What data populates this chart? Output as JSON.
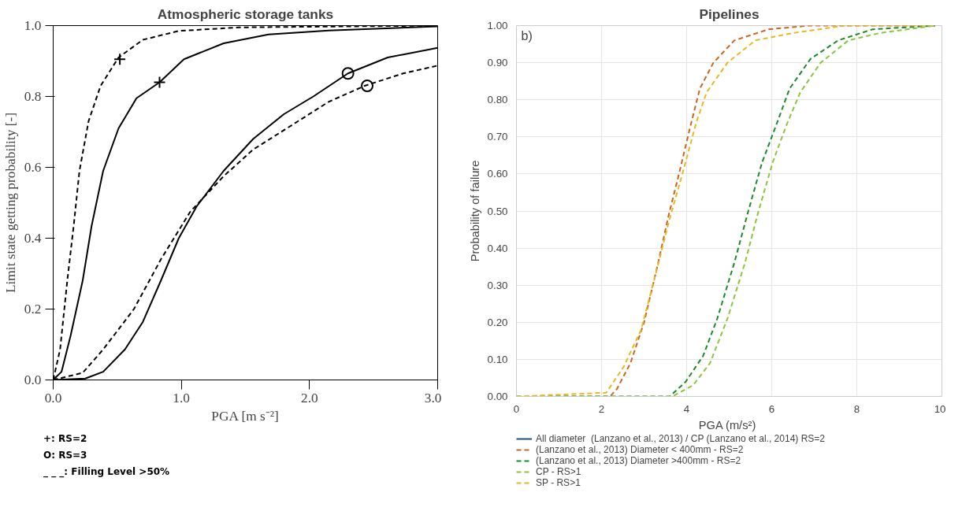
{
  "chart_data": [
    {
      "type": "line",
      "title": "Atmospheric storage tanks",
      "xlabel": "PGA [m s⁻²]",
      "ylabel": "Limit state getting probability [-]",
      "xlim": [
        0,
        3.0
      ],
      "ylim": [
        0,
        1.0
      ],
      "xticks": [
        {
          "value": 0,
          "label": "0.0"
        },
        {
          "value": 1,
          "label": "1.0"
        },
        {
          "value": 2,
          "label": "2.0"
        },
        {
          "value": 3,
          "label": "3.0"
        }
      ],
      "yticks": [
        {
          "value": 0,
          "label": "0.0"
        },
        0.2,
        0.4,
        0.6,
        0.8,
        {
          "value": 1,
          "label": "1.0"
        }
      ],
      "grid": false,
      "legend": false,
      "annotations": [
        "+:  RS=2",
        "O: RS=3",
        "_ _ _: Filling Level >50%"
      ],
      "series": [
        {
          "color": "#000000",
          "line_style": "dashed",
          "x": [
            0,
            0.054,
            0.11,
            0.16,
            0.205,
            0.276,
            0.37,
            0.51,
            0.7,
            0.98,
            1.45,
            3.0
          ],
          "values": [
            0,
            0.086,
            0.28,
            0.435,
            0.59,
            0.73,
            0.83,
            0.91,
            0.96,
            0.985,
            0.995,
            1.0
          ]
        },
        {
          "color": "#000000",
          "line_style": "solid",
          "x": [
            0,
            0.065,
            0.136,
            0.23,
            0.3,
            0.39,
            0.51,
            0.65,
            0.83,
            1.02,
            1.33,
            1.68,
            2.15,
            3.0
          ],
          "values": [
            0,
            0.023,
            0.125,
            0.28,
            0.435,
            0.59,
            0.71,
            0.795,
            0.84,
            0.905,
            0.95,
            0.975,
            0.986,
            0.998
          ]
        },
        {
          "color": "#000000",
          "line_style": "solid",
          "x": [
            0,
            0.25,
            0.39,
            0.56,
            0.7,
            0.84,
            0.98,
            1.12,
            1.33,
            1.56,
            1.8,
            2.03,
            2.3,
            2.61,
            3.0
          ],
          "values": [
            0,
            0.004,
            0.023,
            0.086,
            0.164,
            0.28,
            0.4,
            0.49,
            0.59,
            0.68,
            0.75,
            0.8,
            0.865,
            0.91,
            0.937
          ]
        },
        {
          "color": "#000000",
          "line_style": "dashed",
          "x": [
            0,
            0.23,
            0.39,
            0.63,
            0.84,
            1.07,
            1.33,
            1.56,
            1.91,
            2.15,
            2.43,
            2.73,
            3.0
          ],
          "values": [
            0,
            0.02,
            0.086,
            0.2,
            0.34,
            0.475,
            0.575,
            0.65,
            0.73,
            0.785,
            0.83,
            0.865,
            0.887
          ]
        },
        {
          "type": "scatter",
          "marker": "cross",
          "color": "#000000",
          "x": [
            0.52,
            0.83
          ],
          "values": [
            0.905,
            0.84
          ]
        },
        {
          "type": "scatter",
          "marker": "circle",
          "color": "#000000",
          "x": [
            2.3,
            2.45
          ],
          "values": [
            0.865,
            0.83
          ]
        }
      ]
    },
    {
      "type": "line",
      "title": "Pipelines",
      "xlabel": "PGA  (m/s²)",
      "ylabel": "Probability of failure",
      "xlim": [
        0,
        10
      ],
      "ylim": [
        0,
        1.0
      ],
      "xticks": [
        0,
        2,
        4,
        6,
        8,
        10
      ],
      "yticks": [
        {
          "value": 0,
          "label": "0.00"
        },
        {
          "value": 0.1,
          "label": "0.10"
        },
        {
          "value": 0.2,
          "label": "0.20"
        },
        {
          "value": 0.3,
          "label": "0.30"
        },
        {
          "value": 0.4,
          "label": "0.40"
        },
        {
          "value": 0.5,
          "label": "0.50"
        },
        {
          "value": 0.6,
          "label": "0.60"
        },
        {
          "value": 0.7,
          "label": "0.70"
        },
        {
          "value": 0.8,
          "label": "0.80"
        },
        {
          "value": 0.9,
          "label": "0.90"
        },
        {
          "value": 1.0,
          "label": "1.00"
        }
      ],
      "grid": true,
      "legend": "bottom",
      "annotations": [
        "b)"
      ],
      "series": [
        {
          "name": "All diameter  (Lanzano et al., 2013) / CP (Lanzano et al., 2014) RS=2",
          "color": "#1f4e79",
          "line_style": "solid"
        },
        {
          "name": "(Lanzano et al., 2013) Diameter < 400mm - RS=2",
          "color": "#c8651e",
          "line_style": "dashed",
          "x": [
            0,
            2.2,
            2.36,
            2.68,
            3.0,
            3.33,
            3.58,
            3.82,
            4.07,
            4.31,
            4.63,
            5.12,
            5.93,
            6.9,
            9.84
          ],
          "values": [
            0,
            0,
            0.02,
            0.09,
            0.2,
            0.36,
            0.49,
            0.6,
            0.72,
            0.83,
            0.9,
            0.96,
            0.99,
            1.0,
            1.0
          ]
        },
        {
          "name": "(Lanzano et al., 2013) Diameter >400mm - RS=2",
          "color": "#1a8a2a",
          "line_style": "dashed",
          "x": [
            0,
            3.6,
            3.98,
            4.39,
            4.72,
            5.12,
            5.45,
            5.77,
            6.1,
            6.42,
            6.91,
            7.56,
            8.37,
            9.84
          ],
          "values": [
            0,
            0,
            0.04,
            0.11,
            0.21,
            0.36,
            0.5,
            0.63,
            0.73,
            0.83,
            0.91,
            0.96,
            0.99,
            1.0
          ]
        },
        {
          "name": "CP - RS>1",
          "color": "#8cc43c",
          "line_style": "dashed",
          "x": [
            0,
            3.66,
            4.15,
            4.55,
            4.96,
            5.37,
            5.69,
            6.02,
            6.34,
            6.67,
            7.15,
            7.8,
            8.54,
            9.84
          ],
          "values": [
            0,
            0,
            0.03,
            0.09,
            0.21,
            0.36,
            0.5,
            0.63,
            0.73,
            0.82,
            0.9,
            0.96,
            0.98,
            1.0
          ]
        },
        {
          "name": "SP - RS>1",
          "color": "#e8b820",
          "line_style": "dashed",
          "x": [
            0,
            2.11,
            2.52,
            2.93,
            3.25,
            3.58,
            3.9,
            4.23,
            4.47,
            4.96,
            5.61,
            6.5,
            7.72,
            9.84
          ],
          "values": [
            0,
            0.01,
            0.08,
            0.18,
            0.32,
            0.47,
            0.6,
            0.74,
            0.82,
            0.9,
            0.96,
            0.98,
            1.0,
            1.0
          ]
        }
      ]
    }
  ]
}
